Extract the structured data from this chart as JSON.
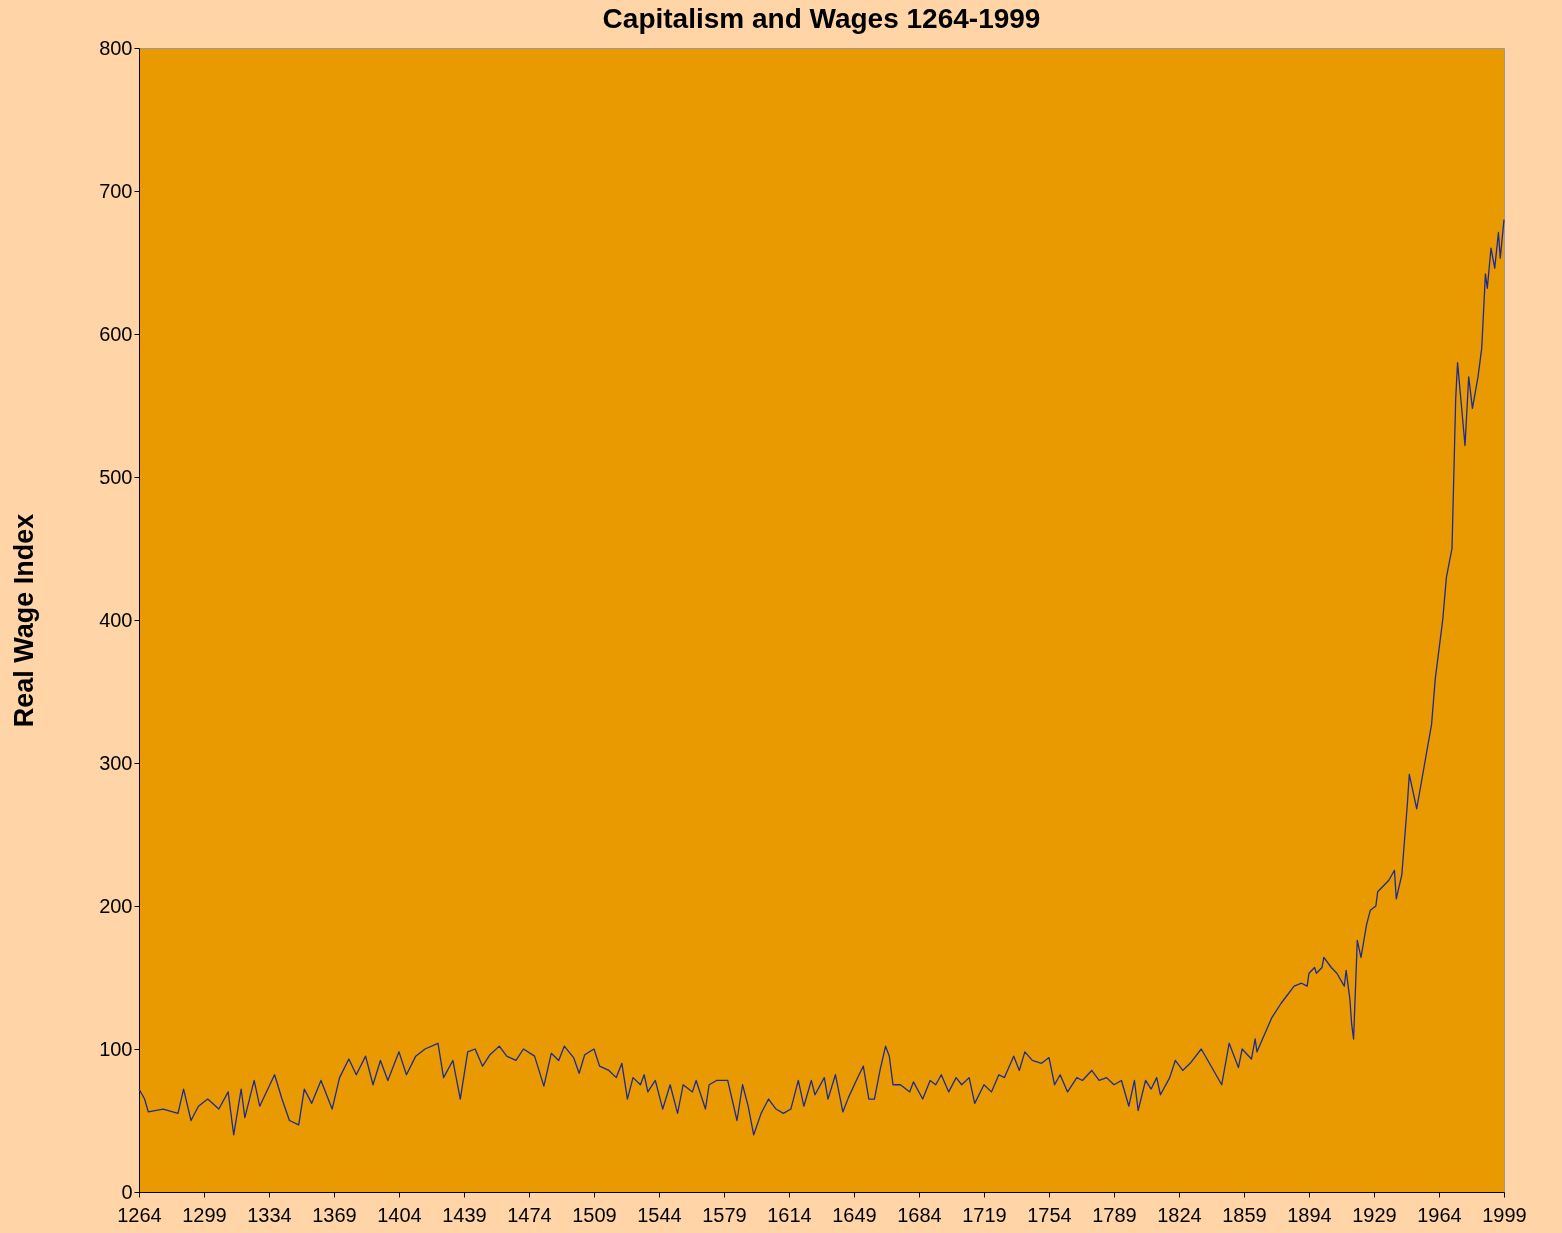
{
  "chart_data": {
    "type": "line",
    "title": "Capitalism and Wages 1264-1999",
    "ylabel": "Real Wage Index",
    "x": [
      1264,
      1267,
      1269,
      1277,
      1285,
      1288,
      1292,
      1296,
      1301,
      1307,
      1312,
      1315,
      1319,
      1321,
      1326,
      1329,
      1337,
      1341,
      1345,
      1350,
      1353,
      1357,
      1362,
      1368,
      1372,
      1377,
      1381,
      1386,
      1390,
      1394,
      1398,
      1404,
      1408,
      1413,
      1418,
      1425,
      1428,
      1433,
      1437,
      1441,
      1445,
      1449,
      1453,
      1458,
      1462,
      1467,
      1471,
      1477,
      1482,
      1486,
      1490,
      1493,
      1498,
      1501,
      1504,
      1509,
      1512,
      1517,
      1521,
      1524,
      1527,
      1530,
      1534,
      1536,
      1538,
      1542,
      1546,
      1550,
      1554,
      1557,
      1562,
      1564,
      1569,
      1571,
      1575,
      1581,
      1586,
      1589,
      1592,
      1595,
      1599,
      1603,
      1607,
      1611,
      1615,
      1619,
      1622,
      1626,
      1628,
      1633,
      1635,
      1639,
      1643,
      1646,
      1651,
      1654,
      1657,
      1660,
      1663,
      1666,
      1668,
      1670,
      1674,
      1679,
      1681,
      1686,
      1690,
      1693,
      1696,
      1700,
      1704,
      1707,
      1711,
      1714,
      1719,
      1723,
      1727,
      1730,
      1735,
      1738,
      1741,
      1745,
      1750,
      1754,
      1757,
      1760,
      1764,
      1769,
      1772,
      1777,
      1781,
      1785,
      1789,
      1793,
      1797,
      1800,
      1802,
      1806,
      1809,
      1812,
      1814,
      1819,
      1822,
      1826,
      1830,
      1836,
      1847,
      1851,
      1856,
      1858,
      1863,
      1865,
      1866,
      1874,
      1879,
      1886,
      1890,
      1893,
      1894,
      1897,
      1898,
      1901,
      1902,
      1906,
      1909,
      1913,
      1914,
      1916,
      1917,
      1918,
      1920,
      1922,
      1925,
      1927,
      1930,
      1931,
      1937,
      1940,
      1941,
      1944,
      1947,
      1948,
      1952,
      1957,
      1960,
      1962,
      1966,
      1968,
      1971,
      1973,
      1974,
      1978,
      1980,
      1982,
      1985,
      1987,
      1989,
      1990,
      1992,
      1994,
      1996,
      1997,
      1999
    ],
    "series": [
      {
        "color": "#1c2a96",
        "values": [
          72,
          65,
          56,
          58,
          55,
          72,
          50,
          60,
          65,
          58,
          70,
          40,
          72,
          52,
          78,
          60,
          82,
          65,
          50,
          47,
          72,
          62,
          78,
          58,
          80,
          93,
          82,
          95,
          75,
          92,
          78,
          98,
          82,
          95,
          100,
          104,
          80,
          92,
          65,
          98,
          100,
          88,
          96,
          102,
          95,
          92,
          100,
          95,
          74,
          97,
          92,
          102,
          94,
          83,
          96,
          100,
          88,
          85,
          80,
          90,
          65,
          80,
          75,
          82,
          70,
          78,
          58,
          75,
          55,
          75,
          70,
          78,
          58,
          75,
          78,
          78,
          50,
          75,
          60,
          40,
          55,
          65,
          58,
          55,
          58,
          78,
          60,
          78,
          68,
          80,
          65,
          82,
          56,
          66,
          80,
          88,
          65,
          65,
          85,
          102,
          95,
          75,
          75,
          70,
          77,
          65,
          78,
          75,
          82,
          70,
          80,
          75,
          80,
          62,
          75,
          70,
          82,
          80,
          95,
          85,
          98,
          92,
          90,
          94,
          75,
          82,
          70,
          80,
          78,
          85,
          78,
          80,
          75,
          78,
          60,
          78,
          57,
          78,
          72,
          80,
          68,
          80,
          92,
          85,
          90,
          100,
          75,
          104,
          87,
          100,
          93,
          107,
          98,
          122,
          132,
          144,
          146,
          144,
          153,
          157,
          153,
          157,
          164,
          157,
          153,
          144,
          155,
          135,
          117,
          107,
          176,
          164,
          187,
          197,
          200,
          210,
          218,
          225,
          205,
          222,
          272,
          292,
          268,
          305,
          327,
          359,
          400,
          430,
          450,
          555,
          580,
          522,
          570,
          548,
          570,
          590,
          642,
          632,
          660,
          646,
          671,
          653,
          680
        ]
      }
    ],
    "xlim": [
      1264,
      1999
    ],
    "xticks": [
      1264,
      1299,
      1334,
      1369,
      1404,
      1439,
      1474,
      1509,
      1544,
      1579,
      1614,
      1649,
      1684,
      1719,
      1754,
      1789,
      1824,
      1859,
      1894,
      1929,
      1964,
      1999
    ],
    "ylim": [
      0,
      800
    ],
    "yticks": [
      0,
      100,
      200,
      300,
      400,
      500,
      600,
      700,
      800
    ],
    "grid": false,
    "legend": false,
    "marker": "none",
    "line_style": "solid"
  }
}
